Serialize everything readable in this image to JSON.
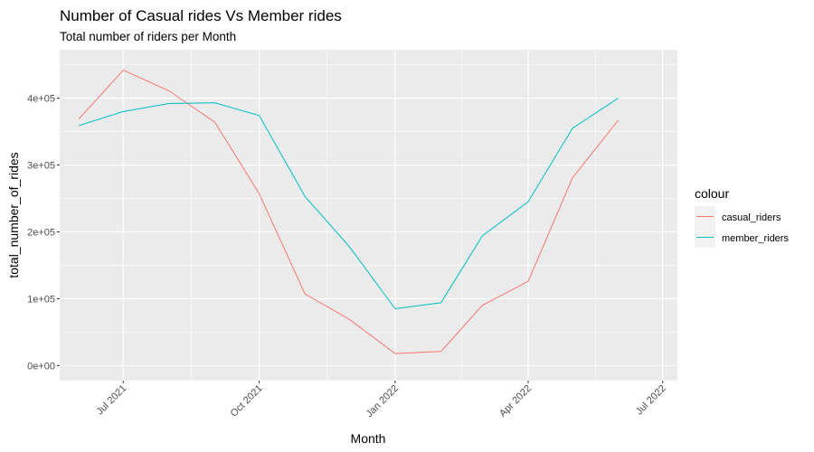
{
  "chart_data": {
    "type": "line",
    "title": "Number of Casual rides Vs Member rides",
    "subtitle": "Total number of riders per Month",
    "xlabel": "Month",
    "ylabel": "total_number_of_rides",
    "x_ticks": [
      "2021-07-01",
      "2021-10-01",
      "2022-01-01",
      "2022-04-01",
      "2022-07-01"
    ],
    "x_tick_labels": [
      "Jul 2021",
      "Oct 2021",
      "Jan 2022",
      "Apr 2022",
      "Jul 2022"
    ],
    "x_range": [
      "2021-05-19",
      "2022-07-11"
    ],
    "y_ticks": [
      0,
      100000,
      200000,
      300000,
      400000
    ],
    "y_tick_labels": [
      "0e+00",
      "1e+05",
      "2e+05",
      "3e+05",
      "4e+05"
    ],
    "ylim": [
      -22500,
      472500
    ],
    "grid": true,
    "legend": {
      "title": "colour",
      "position": "right",
      "entries": [
        "casual_riders",
        "member_riders"
      ]
    },
    "colors": {
      "casual_riders": "#F8766D",
      "member_riders": "#00BFC4",
      "panel_background": "#EBEBEB",
      "grid": "#FFFFFF"
    },
    "x": [
      "2021-06-01",
      "2021-07-01",
      "2021-08-01",
      "2021-09-01",
      "2021-10-01",
      "2021-11-01",
      "2021-12-01",
      "2022-01-01",
      "2022-02-01",
      "2022-03-01",
      "2022-04-01",
      "2022-05-01",
      "2022-06-01"
    ],
    "series": [
      {
        "name": "casual_riders",
        "values": [
          369000,
          442000,
          411000,
          364000,
          257000,
          107000,
          69000,
          18000,
          21000,
          90000,
          126000,
          281000,
          367000
        ]
      },
      {
        "name": "member_riders",
        "values": [
          359000,
          380000,
          392000,
          393000,
          374000,
          253000,
          178000,
          85000,
          94000,
          194000,
          245000,
          355000,
          400000
        ]
      }
    ]
  }
}
